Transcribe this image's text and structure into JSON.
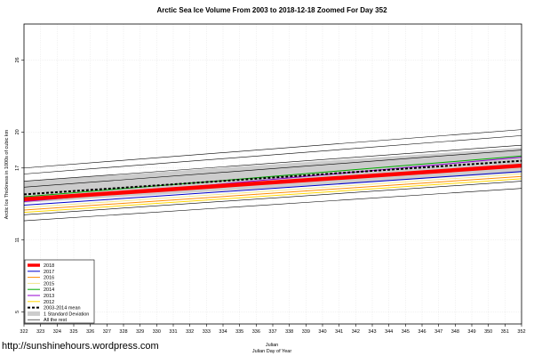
{
  "chart_data": {
    "type": "line",
    "title": "Arctic Sea Ice Volume From 2003 to 2018-12-18 Zoomed For Day 352",
    "xlabel": "Julian",
    "xlabel2": "Julian Day of Year",
    "ylabel": "Arctic Ice Thickness in 1000s of cubic km",
    "xlim": [
      322,
      352
    ],
    "ylim": [
      4,
      29
    ],
    "x_ticks": [
      322,
      323,
      324,
      325,
      326,
      327,
      328,
      329,
      330,
      331,
      332,
      333,
      334,
      335,
      336,
      337,
      338,
      339,
      340,
      341,
      342,
      343,
      344,
      345,
      346,
      347,
      348,
      349,
      350,
      351,
      352
    ],
    "y_ticks": [
      5,
      11,
      17,
      20,
      26
    ],
    "grid": true,
    "legend_position": "bottom-left",
    "x": [
      322,
      352
    ],
    "std_band": {
      "upper": [
        15.9,
        18.7
      ],
      "lower": [
        14.1,
        16.6
      ]
    },
    "series": [
      {
        "name": "2018",
        "color": "#ff0000",
        "width": 4.5,
        "dash": "",
        "values": [
          14.4,
          17.2
        ]
      },
      {
        "name": "2017",
        "color": "#0000cc",
        "width": 1,
        "dash": "",
        "values": [
          13.9,
          16.7
        ]
      },
      {
        "name": "2016",
        "color": "#ff8c00",
        "width": 1,
        "dash": "",
        "values": [
          13.5,
          16.3
        ]
      },
      {
        "name": "2015",
        "color": "#f0e68c",
        "width": 1,
        "dash": "",
        "values": [
          13.7,
          16.5
        ]
      },
      {
        "name": "2014",
        "color": "#00aa00",
        "width": 1,
        "dash": "",
        "values": [
          14.6,
          18.0
        ]
      },
      {
        "name": "2013",
        "color": "#9400d3",
        "width": 1,
        "dash": "",
        "values": [
          14.2,
          17.9
        ]
      },
      {
        "name": "2012",
        "color": "#ffd700",
        "width": 1,
        "dash": "",
        "values": [
          13.3,
          16.1
        ]
      },
      {
        "name": "2003-2014 mean",
        "color": "#000000",
        "width": 2,
        "dash": "3,2",
        "values": [
          14.8,
          17.6
        ]
      },
      {
        "name": "1 Standard Deviation",
        "type": "band",
        "color": "#cccccc"
      },
      {
        "name": "All the rest",
        "color": "#000000",
        "width": 0.6,
        "dash": "",
        "values": [
          17.0,
          20.2
        ]
      }
    ],
    "other_years": [
      [
        17.0,
        20.2
      ],
      [
        16.5,
        19.7
      ],
      [
        15.9,
        18.9
      ],
      [
        15.4,
        18.5
      ],
      [
        13.1,
        15.9
      ],
      [
        12.6,
        15.3
      ]
    ]
  },
  "footer": {
    "credit": "http://sunshinehours.wordpress.com"
  }
}
